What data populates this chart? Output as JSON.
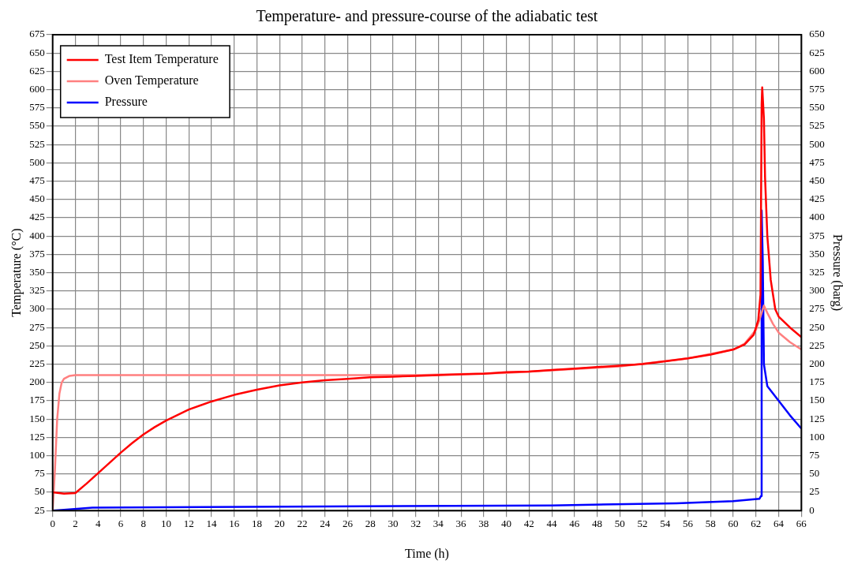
{
  "chart_data": {
    "type": "line",
    "title": "Temperature- and pressure-course of the adiabatic test",
    "xlabel": "Time (h)",
    "ylabel": "Temperature (°C)",
    "y2label": "Pressure (barg)",
    "xlim": [
      0,
      66
    ],
    "xticks": [
      0,
      2,
      4,
      6,
      8,
      10,
      12,
      14,
      16,
      18,
      20,
      22,
      24,
      26,
      28,
      30,
      32,
      34,
      36,
      38,
      40,
      42,
      44,
      46,
      48,
      50,
      52,
      54,
      56,
      58,
      60,
      62,
      64,
      66
    ],
    "ylim": [
      25,
      675
    ],
    "yticks": [
      25,
      50,
      75,
      100,
      125,
      150,
      175,
      200,
      225,
      250,
      275,
      300,
      325,
      350,
      375,
      400,
      425,
      450,
      475,
      500,
      525,
      550,
      575,
      600,
      625,
      650,
      675
    ],
    "y2lim": [
      0,
      650
    ],
    "y2ticks": [
      0,
      25,
      50,
      75,
      100,
      125,
      150,
      175,
      200,
      225,
      250,
      275,
      300,
      325,
      350,
      375,
      400,
      425,
      450,
      475,
      500,
      525,
      550,
      575,
      600,
      625,
      650
    ],
    "grid": true,
    "legend": "top left",
    "marker": "none",
    "line_style": "solid",
    "series": [
      {
        "name": "Test Item Temperature",
        "color": "#ff0000",
        "x": [
          0,
          1,
          2,
          3,
          4,
          5,
          6,
          7,
          8,
          9,
          10,
          12,
          14,
          16,
          18,
          20,
          22,
          24,
          26,
          28,
          30,
          32,
          34,
          36,
          38,
          40,
          42,
          44,
          46,
          48,
          50,
          52,
          54,
          56,
          58,
          60,
          61,
          61.8,
          62.2,
          62.4,
          62.5,
          62.55,
          62.7,
          62.8,
          63,
          63.3,
          63.7,
          64,
          65,
          66
        ],
        "values": [
          50,
          48,
          49,
          62,
          76,
          90,
          104,
          117,
          129,
          139,
          148,
          163,
          174,
          183,
          190,
          196,
          200,
          203,
          205,
          207,
          208,
          209,
          210,
          211,
          212,
          214,
          215,
          217,
          219,
          221,
          223,
          225,
          229,
          233,
          238,
          245,
          252,
          265,
          285,
          320,
          580,
          603,
          560,
          480,
          400,
          340,
          300,
          290,
          275,
          262
        ]
      },
      {
        "name": "Oven Temperature",
        "color": "#ff8080",
        "x": [
          0,
          0.2,
          0.4,
          0.6,
          0.8,
          1,
          1.5,
          2,
          32,
          40,
          50,
          56,
          60,
          61,
          62,
          62.3,
          62.7,
          63,
          63.5,
          64,
          65,
          66
        ],
        "values": [
          25,
          80,
          150,
          185,
          200,
          205,
          209,
          210,
          210,
          213,
          222,
          233,
          245,
          253,
          272,
          285,
          305,
          295,
          280,
          268,
          255,
          245
        ]
      },
      {
        "name": "Pressure",
        "color": "#0000ff",
        "axis": "y2",
        "x": [
          0,
          1,
          3.5,
          17,
          44,
          55,
          60,
          62.3,
          62.45,
          62.5,
          62.6,
          62.7,
          63,
          64,
          65,
          66
        ],
        "values": [
          0,
          1,
          4,
          5,
          7,
          10,
          13,
          16,
          20,
          410,
          340,
          200,
          170,
          150,
          130,
          112
        ]
      }
    ]
  }
}
